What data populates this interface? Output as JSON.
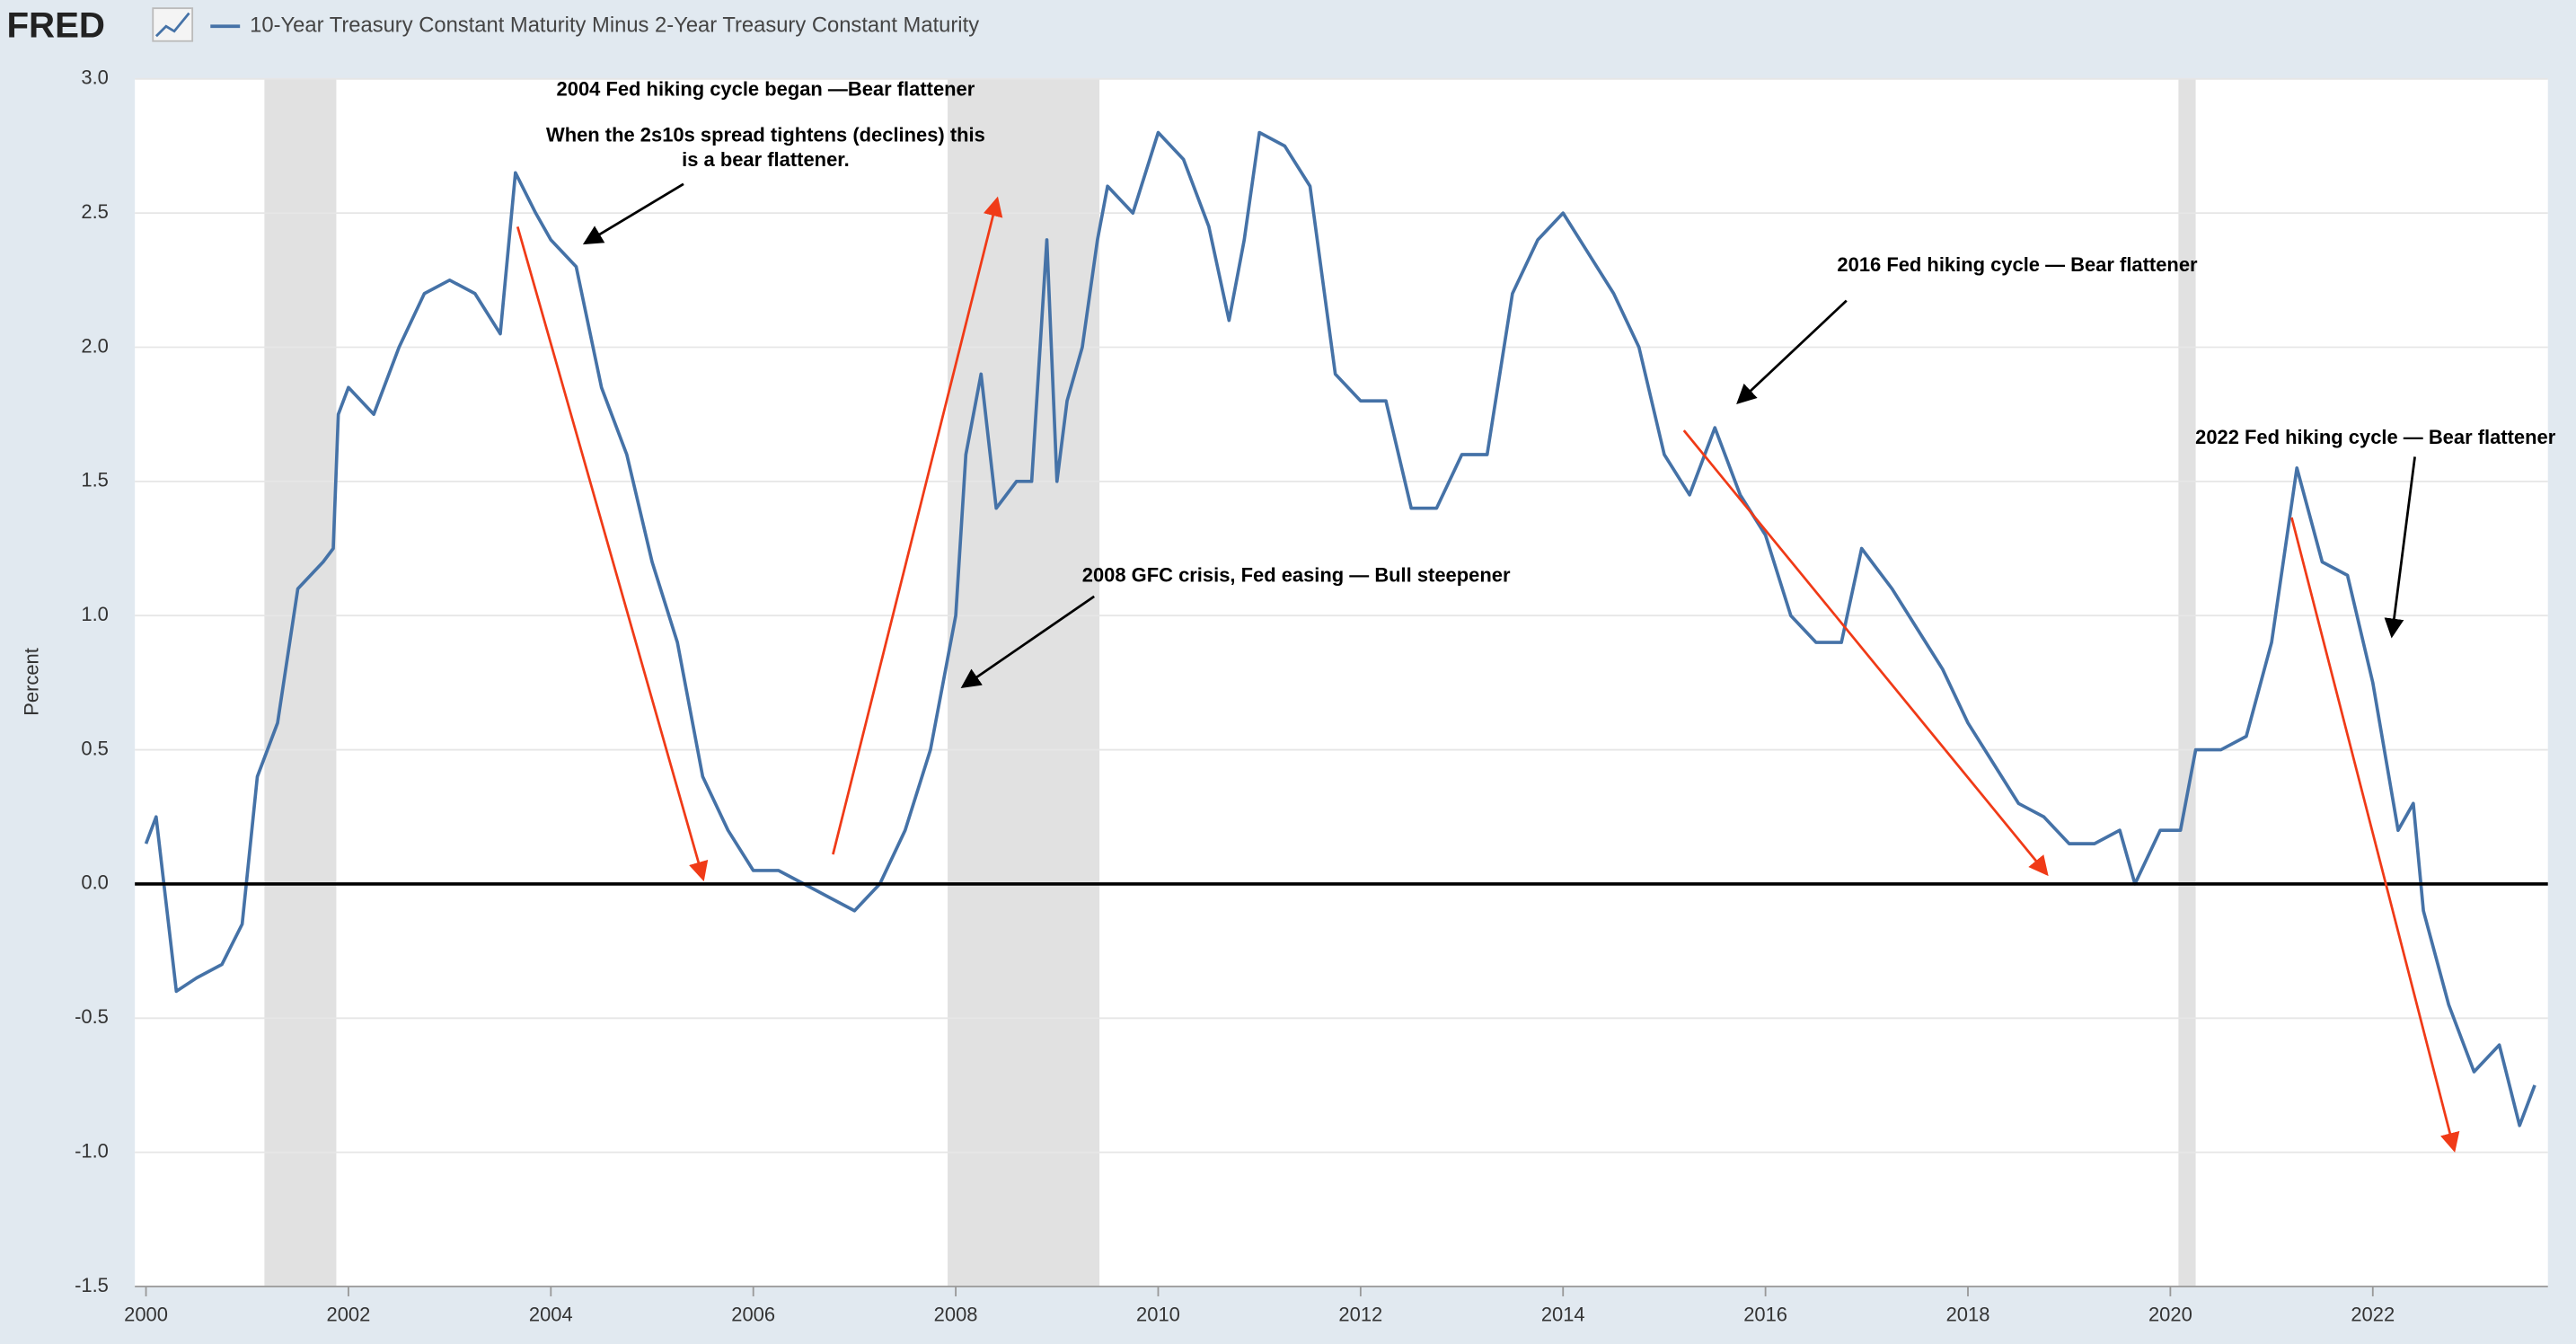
{
  "chart_data": {
    "type": "line",
    "header_logo": "FRED",
    "y_label": "Percent",
    "annotations": [
      "2004 Fed hiking cycle began —Bear flattener",
      "When the 2s10s spread tightens (declines) this",
      "is a bear flattener.",
      "2016 Fed hiking cycle — Bear flattener",
      "2008 GFC crisis, Fed easing — Bull steepener",
      "2022 Fed hiking cycle — Bear flattener"
    ],
    "x": [
      2000.0,
      2000.1,
      2000.3,
      2000.5,
      2000.75,
      2000.95,
      2001.1,
      2001.3,
      2001.5,
      2001.75,
      2001.85,
      2001.9,
      2002.0,
      2002.25,
      2002.5,
      2002.75,
      2003.0,
      2003.25,
      2003.5,
      2003.65,
      2003.85,
      2004.0,
      2004.25,
      2004.5,
      2004.75,
      2005.0,
      2005.25,
      2005.5,
      2005.75,
      2006.0,
      2006.25,
      2006.5,
      2006.75,
      2007.0,
      2007.25,
      2007.5,
      2007.75,
      2008.0,
      2008.1,
      2008.25,
      2008.4,
      2008.6,
      2008.75,
      2008.9,
      2009.0,
      2009.1,
      2009.25,
      2009.4,
      2009.5,
      2009.75,
      2010.0,
      2010.25,
      2010.5,
      2010.7,
      2010.85,
      2011.0,
      2011.25,
      2011.5,
      2011.75,
      2012.0,
      2012.25,
      2012.5,
      2012.75,
      2013.0,
      2013.25,
      2013.5,
      2013.75,
      2014.0,
      2014.25,
      2014.5,
      2014.75,
      2015.0,
      2015.25,
      2015.5,
      2015.75,
      2016.0,
      2016.25,
      2016.5,
      2016.75,
      2016.95,
      2017.25,
      2017.5,
      2017.75,
      2018.0,
      2018.25,
      2018.5,
      2018.75,
      2019.0,
      2019.25,
      2019.5,
      2019.65,
      2019.9,
      2020.1,
      2020.25,
      2020.5,
      2020.75,
      2021.0,
      2021.25,
      2021.5,
      2021.75,
      2022.0,
      2022.25,
      2022.4,
      2022.5,
      2022.75,
      2023.0,
      2023.25,
      2023.45,
      2023.6
    ],
    "series": [
      {
        "name": "10-Year Treasury Constant Maturity Minus 2-Year Treasury Constant Maturity",
        "color": "#4572a7",
        "values": [
          0.15,
          0.25,
          -0.4,
          -0.35,
          -0.3,
          -0.15,
          0.4,
          0.6,
          1.1,
          1.2,
          1.25,
          1.75,
          1.85,
          1.75,
          2.0,
          2.2,
          2.25,
          2.2,
          2.05,
          2.65,
          2.5,
          2.4,
          2.3,
          1.85,
          1.6,
          1.2,
          0.9,
          0.4,
          0.2,
          0.05,
          0.05,
          0.0,
          -0.05,
          -0.1,
          0.0,
          0.2,
          0.5,
          1.0,
          1.6,
          1.9,
          1.4,
          1.5,
          1.5,
          2.4,
          1.5,
          1.8,
          2.0,
          2.4,
          2.6,
          2.5,
          2.8,
          2.7,
          2.45,
          2.1,
          2.4,
          2.8,
          2.75,
          2.6,
          1.9,
          1.8,
          1.8,
          1.4,
          1.4,
          1.6,
          1.6,
          2.2,
          2.4,
          2.5,
          2.35,
          2.2,
          2.0,
          1.6,
          1.45,
          1.7,
          1.45,
          1.3,
          1.0,
          0.9,
          0.9,
          1.25,
          1.1,
          0.95,
          0.8,
          0.6,
          0.45,
          0.3,
          0.25,
          0.15,
          0.15,
          0.2,
          0.0,
          0.2,
          0.2,
          0.5,
          0.5,
          0.55,
          0.9,
          1.55,
          1.2,
          1.15,
          0.75,
          0.2,
          0.3,
          -0.1,
          -0.45,
          -0.7,
          -0.6,
          -0.9,
          -0.75
        ]
      }
    ],
    "shaded_regions": [
      [
        2001.17,
        2001.88
      ],
      [
        2007.92,
        2009.42
      ],
      [
        2020.08,
        2020.25
      ]
    ],
    "hline": 0,
    "xlim": [
      1999.89,
      2023.73
    ],
    "xticks": [
      2000,
      2002,
      2004,
      2006,
      2008,
      2010,
      2012,
      2014,
      2016,
      2018,
      2020,
      2022
    ],
    "ylim": [
      -1.5,
      3.0
    ],
    "yticks": [
      {
        "value": -1.5,
        "label": "-1.5"
      },
      {
        "value": -1.0,
        "label": "-1.0"
      },
      {
        "value": -0.5,
        "label": "-0.5"
      },
      {
        "value": 0,
        "label": "0.0"
      },
      {
        "value": 0.5,
        "label": "0.5"
      },
      {
        "value": 1.0,
        "label": "1.0"
      },
      {
        "value": 1.5,
        "label": "1.5"
      },
      {
        "value": 2.0,
        "label": "2.0"
      },
      {
        "value": 2.5,
        "label": "2.5"
      },
      {
        "value": 3.0,
        "label": "3.0"
      }
    ],
    "grid": true
  }
}
